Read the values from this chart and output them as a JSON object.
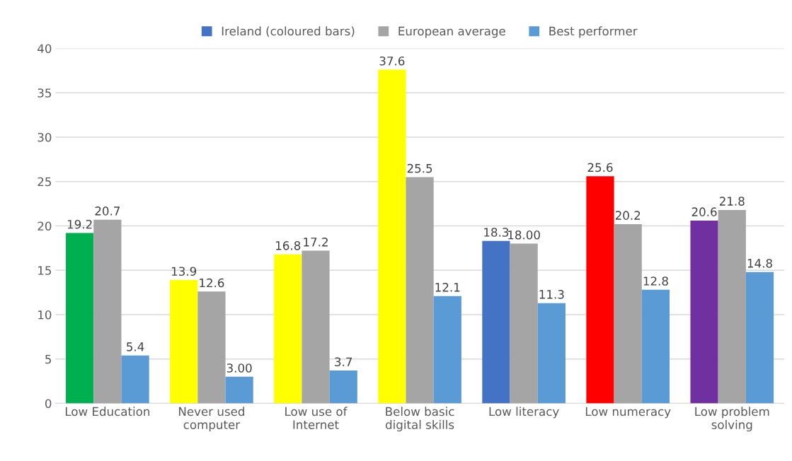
{
  "chart_data": {
    "type": "bar",
    "categories": [
      "Low Education",
      "Never used\ncomputer",
      "Low use of\nInternet",
      "Below basic\ndigital skills",
      "Low literacy",
      "Low numeracy",
      "Low problem\nsolving"
    ],
    "series": [
      {
        "name": "Ireland (coloured bars)",
        "color": "#4472c4",
        "colors": [
          "#00b050",
          "#ffff00",
          "#ffff00",
          "#ffff00",
          "#4472c4",
          "#ff0000",
          "#7030a0"
        ],
        "values": [
          19.2,
          13.9,
          16.8,
          37.6,
          18.3,
          25.6,
          20.6
        ],
        "value_labels": [
          "19.2",
          "13.9",
          "16.8",
          "37.6",
          "18.3",
          "25.6",
          "20.6"
        ]
      },
      {
        "name": "European average",
        "color": "#a5a5a5",
        "values": [
          20.7,
          12.6,
          17.2,
          25.5,
          18.0,
          20.2,
          21.8
        ],
        "value_labels": [
          "20.7",
          "12.6",
          "17.2",
          "25.5",
          "18.00",
          "20.2",
          "21.8"
        ]
      },
      {
        "name": "Best performer",
        "color": "#5b9bd5",
        "values": [
          5.4,
          3.0,
          3.7,
          12.1,
          11.3,
          12.8,
          14.8
        ],
        "value_labels": [
          "5.4",
          "3.00",
          "3.7",
          "12.1",
          "11.3",
          "12.8",
          "14.8"
        ]
      }
    ],
    "ylim": [
      0,
      40
    ],
    "yticks": [
      0,
      5,
      10,
      15,
      20,
      25,
      30,
      35,
      40
    ],
    "grid": "y",
    "legend": "top"
  }
}
